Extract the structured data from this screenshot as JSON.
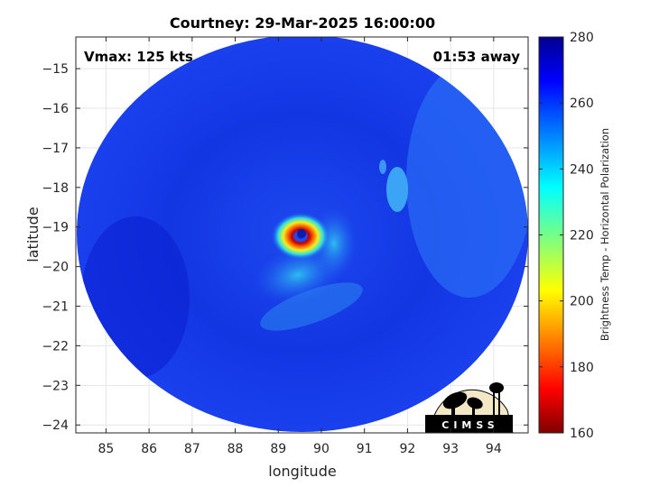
{
  "title": "Courtney: 29-Mar-2025 16:00:00",
  "annotations": {
    "vmax": "Vmax: 125 kts",
    "time_away": "01:53 away"
  },
  "axes": {
    "xlabel": "longitude",
    "ylabel": "latitude",
    "xlim": [
      84.3,
      94.8
    ],
    "ylim": [
      -24.2,
      -14.2
    ],
    "xticks": [
      85,
      86,
      87,
      88,
      89,
      90,
      91,
      92,
      93,
      94
    ],
    "yticks": [
      -15,
      -16,
      -17,
      -18,
      -19,
      -20,
      -21,
      -22,
      -23,
      -24
    ],
    "grid": true
  },
  "colorbar": {
    "label": "Brightness Temp - Horizontal Polarization",
    "min": 160,
    "max": 280,
    "ticks": [
      160,
      180,
      200,
      220,
      240,
      260,
      280
    ],
    "colormap": "jet"
  },
  "storm_center": {
    "lon": 89.5,
    "lat": -19.1
  },
  "logo_text": "CIMSS",
  "colors": {
    "background_swath": "#1030e0",
    "eye": "#1a3cf0",
    "eyewall": "#e01010"
  }
}
